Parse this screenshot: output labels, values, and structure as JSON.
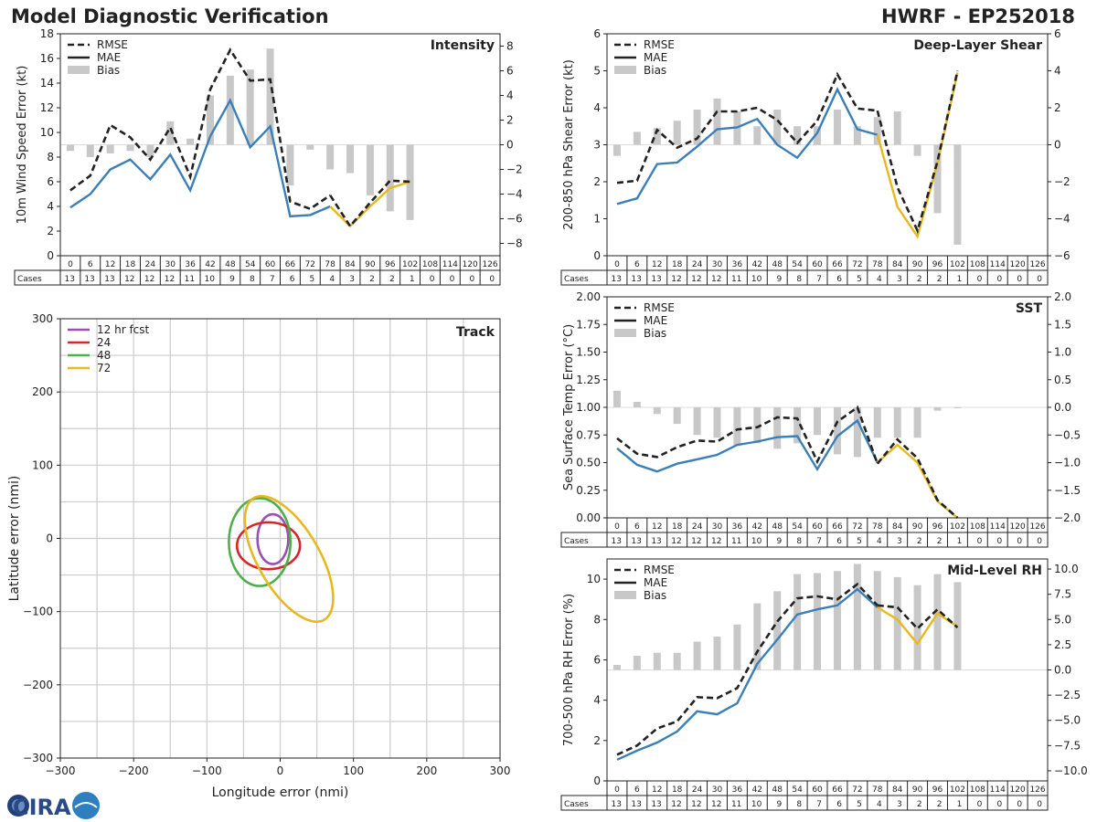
{
  "header": {
    "title_left": "Model Diagnostic Verification",
    "title_right": "HWRF - EP252018"
  },
  "logo": {
    "text": "CIRA"
  },
  "chart_data": [
    {
      "id": "intensity",
      "type": "line+bar",
      "title": "Intensity",
      "ylabel": "10m Wind Speed Error (kt)",
      "ylim": [
        0,
        18
      ],
      "yticks": [
        0,
        2,
        4,
        6,
        8,
        10,
        12,
        14,
        16,
        18
      ],
      "y2lim": [
        -9,
        9
      ],
      "y2ticks": [
        -8,
        -6,
        -4,
        -2,
        0,
        2,
        4,
        6,
        8
      ],
      "legend": [
        "RMSE",
        "MAE",
        "Bias"
      ],
      "forecast_hours": [
        0,
        6,
        12,
        18,
        24,
        30,
        36,
        42,
        48,
        54,
        60,
        66,
        72,
        78,
        84,
        90,
        96,
        102,
        108,
        114,
        120,
        126
      ],
      "cases_label": "Cases",
      "cases": [
        13,
        13,
        13,
        12,
        12,
        12,
        11,
        10,
        9,
        8,
        7,
        6,
        5,
        4,
        3,
        2,
        2,
        1,
        0,
        0,
        0,
        0
      ],
      "rmse": [
        5.3,
        6.5,
        10.6,
        9.6,
        7.8,
        10.4,
        6.4,
        13.5,
        16.7,
        14.2,
        14.3,
        4.4,
        3.8,
        4.9,
        2.4,
        4.3,
        6.1,
        6.0,
        null,
        null,
        null,
        null
      ],
      "mae": [
        3.9,
        5.0,
        7.0,
        7.8,
        6.2,
        8.2,
        5.3,
        9.7,
        12.6,
        8.8,
        10.5,
        3.2,
        3.3,
        4.0,
        2.4,
        4.0,
        5.5,
        6.0,
        null,
        null,
        null,
        null
      ],
      "bias": [
        -0.5,
        -1.0,
        -0.7,
        -0.5,
        -1.0,
        1.9,
        0.5,
        4.0,
        5.6,
        6.1,
        7.8,
        -3.3,
        -0.4,
        -2.0,
        -2.3,
        -4.1,
        -5.4,
        -6.1,
        null,
        null,
        null,
        null
      ]
    },
    {
      "id": "shear",
      "type": "line+bar",
      "title": "Deep-Layer Shear",
      "ylabel": "200-850 hPa Shear Error (kt)",
      "ylim": [
        0,
        6
      ],
      "yticks": [
        0,
        1,
        2,
        3,
        4,
        5,
        6
      ],
      "y2lim": [
        -6,
        6
      ],
      "y2ticks": [
        -6,
        -4,
        -2,
        0,
        2,
        4,
        6
      ],
      "legend": [
        "RMSE",
        "MAE",
        "Bias"
      ],
      "forecast_hours": [
        0,
        6,
        12,
        18,
        24,
        30,
        36,
        42,
        48,
        54,
        60,
        66,
        72,
        78,
        84,
        90,
        96,
        102,
        108,
        114,
        120,
        126
      ],
      "cases_label": "Cases",
      "cases": [
        13,
        13,
        13,
        12,
        12,
        12,
        11,
        10,
        9,
        8,
        7,
        6,
        5,
        4,
        3,
        2,
        2,
        1,
        0,
        0,
        0,
        0
      ],
      "rmse": [
        1.97,
        2.03,
        3.4,
        2.92,
        3.17,
        3.9,
        3.9,
        4.0,
        3.67,
        3.05,
        3.65,
        4.9,
        3.98,
        3.92,
        1.85,
        0.68,
        2.55,
        5.0,
        null,
        null,
        null,
        null
      ],
      "mae": [
        1.4,
        1.55,
        2.48,
        2.52,
        2.95,
        3.42,
        3.47,
        3.7,
        3.0,
        2.65,
        3.32,
        4.5,
        3.42,
        3.27,
        1.32,
        0.52,
        2.5,
        4.95,
        null,
        null,
        null,
        null
      ],
      "bias": [
        -0.6,
        0.7,
        0.9,
        1.3,
        1.9,
        2.5,
        1.8,
        1.0,
        1.9,
        1.0,
        1.0,
        1.9,
        1.0,
        1.5,
        1.8,
        -0.6,
        -3.7,
        -5.4,
        null,
        null,
        null,
        null
      ]
    },
    {
      "id": "sst",
      "type": "line+bar",
      "title": "SST",
      "ylabel": "Sea Surface Temp Error (°C)",
      "ylim": [
        0,
        2
      ],
      "yticks": [
        "0.00",
        "0.25",
        "0.50",
        "0.75",
        "1.00",
        "1.25",
        "1.50",
        "1.75",
        "2.00"
      ],
      "y2lim": [
        -2,
        2
      ],
      "y2ticks": [
        "−2.0",
        "−1.5",
        "−1.0",
        "−0.5",
        "0.0",
        "0.5",
        "1.0",
        "1.5",
        "2.0"
      ],
      "legend": [
        "RMSE",
        "MAE",
        "Bias"
      ],
      "forecast_hours": [
        0,
        6,
        12,
        18,
        24,
        30,
        36,
        42,
        48,
        54,
        60,
        66,
        72,
        78,
        84,
        90,
        96,
        102,
        108,
        114,
        120,
        126
      ],
      "cases_label": "Cases",
      "cases": [
        13,
        13,
        13,
        12,
        12,
        12,
        11,
        10,
        9,
        8,
        7,
        6,
        5,
        4,
        3,
        2,
        2,
        1,
        0,
        0,
        0,
        0
      ],
      "rmse": [
        0.72,
        0.58,
        0.55,
        0.64,
        0.7,
        0.69,
        0.8,
        0.82,
        0.91,
        0.9,
        0.51,
        0.87,
        1.0,
        0.49,
        0.71,
        0.54,
        0.16,
        0.0,
        null,
        null,
        null,
        null
      ],
      "mae": [
        0.63,
        0.48,
        0.42,
        0.49,
        0.53,
        0.57,
        0.66,
        0.69,
        0.73,
        0.74,
        0.44,
        0.74,
        0.88,
        0.5,
        0.66,
        0.5,
        0.15,
        0.0,
        null,
        null,
        null,
        null
      ],
      "bias": [
        0.3,
        0.1,
        -0.12,
        -0.3,
        -0.5,
        -0.55,
        -0.7,
        -0.65,
        -0.75,
        -0.65,
        -0.5,
        -0.85,
        -0.9,
        -0.55,
        -0.55,
        -0.55,
        -0.06,
        0.0,
        null,
        null,
        null,
        null
      ]
    },
    {
      "id": "rh",
      "type": "line+bar",
      "title": "Mid-Level RH",
      "ylabel": "700-500 hPa RH Error (%)",
      "ylim": [
        0,
        11
      ],
      "yticks": [
        0,
        2,
        4,
        6,
        8,
        10
      ],
      "y2lim": [
        -11,
        11
      ],
      "y2ticks": [
        "−10.0",
        "−7.5",
        "−5.0",
        "−2.5",
        "0.0",
        "2.5",
        "5.0",
        "7.5",
        "10.0"
      ],
      "legend": [
        "RMSE",
        "MAE",
        "Bias"
      ],
      "forecast_hours": [
        0,
        6,
        12,
        18,
        24,
        30,
        36,
        42,
        48,
        54,
        60,
        66,
        72,
        78,
        84,
        90,
        96,
        102,
        108,
        114,
        120,
        126
      ],
      "cases_label": "Cases",
      "cases": [
        13,
        13,
        13,
        12,
        12,
        12,
        11,
        10,
        9,
        8,
        7,
        6,
        5,
        4,
        3,
        2,
        2,
        1,
        0,
        0,
        0,
        0
      ],
      "rmse": [
        1.3,
        1.75,
        2.6,
        2.95,
        4.15,
        4.1,
        4.6,
        6.4,
        7.9,
        9.05,
        9.15,
        9.0,
        9.75,
        8.7,
        8.6,
        7.55,
        8.5,
        7.6,
        null,
        null,
        null,
        null
      ],
      "mae": [
        1.05,
        1.5,
        1.9,
        2.45,
        3.45,
        3.3,
        3.85,
        5.8,
        7.0,
        8.25,
        8.5,
        8.7,
        9.5,
        8.6,
        8.0,
        6.8,
        8.3,
        7.65,
        null,
        null,
        null,
        null
      ],
      "bias": [
        0.5,
        1.4,
        1.7,
        1.7,
        2.8,
        3.3,
        4.5,
        6.6,
        7.8,
        9.5,
        9.6,
        9.8,
        10.5,
        9.8,
        9.2,
        8.4,
        9.5,
        8.7,
        null,
        null,
        null,
        null
      ]
    },
    {
      "id": "track",
      "type": "ellipse",
      "title": "Track",
      "xlabel": "Longitude error (nmi)",
      "ylabel": "Latitude error (nmi)",
      "xlim": [
        -300,
        300
      ],
      "ylim": [
        -300,
        300
      ],
      "xticks": [
        "−300",
        "−200",
        "−100",
        "0",
        "100",
        "200",
        "300"
      ],
      "yticks": [
        "−300",
        "−200",
        "−100",
        "0",
        "100",
        "200",
        "300"
      ],
      "grid": true,
      "legend": [
        "12 hr fcst",
        "24",
        "48",
        "72"
      ],
      "ellipses": [
        {
          "label": "12 hr fcst",
          "color": "#9b4fb0",
          "cx": -10,
          "cy": -1,
          "rx": 21,
          "ry": 34,
          "angle": 0
        },
        {
          "label": "24",
          "color": "#d62728",
          "cx": -16,
          "cy": -10,
          "rx": 43,
          "ry": 32,
          "angle": 0
        },
        {
          "label": "48",
          "color": "#4daf4a",
          "cx": -28,
          "cy": -5,
          "rx": 42,
          "ry": 60,
          "angle": 0
        },
        {
          "label": "72",
          "color": "#e8b820",
          "cx": 12,
          "cy": -28,
          "rx": 42,
          "ry": 96,
          "angle": -30
        }
      ]
    }
  ],
  "colors": {
    "rmse": "#222222",
    "mae": "#3a7fb8",
    "late": "#e8b820",
    "bias": "#c8c8c8",
    "grid": "#cccccc"
  }
}
